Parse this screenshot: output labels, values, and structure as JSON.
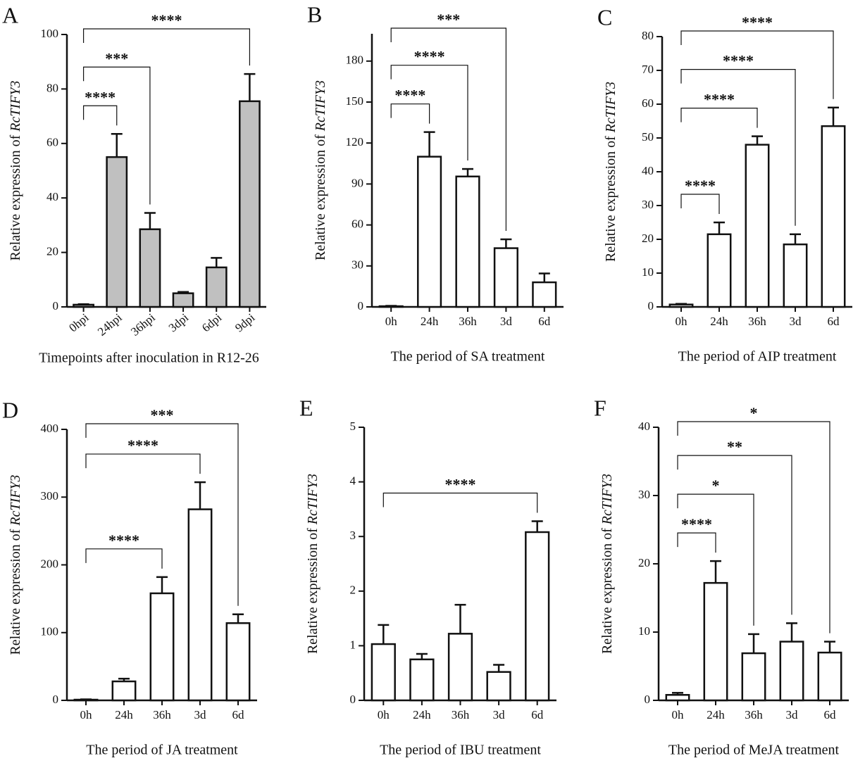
{
  "chart_data": [
    {
      "type": "bar",
      "panel": "A",
      "xlabel": "Timepoints after inoculation in R12-26",
      "ylabel": {
        "text": "Relative expression of",
        "gene": "RcTIFY3"
      },
      "categories": [
        "0hpi",
        "24hpi",
        "36hpi",
        "3dpi",
        "6dpi",
        "9dpi"
      ],
      "values": [
        0.8,
        55,
        28.5,
        5,
        14.5,
        75.5
      ],
      "errors": [
        0.2,
        8.5,
        6,
        0.5,
        3.5,
        10
      ],
      "color": "#c0c0c0",
      "ylim": [
        0,
        100
      ],
      "yticks": [
        0,
        20,
        40,
        60,
        80,
        100
      ],
      "rotate_xticks": true,
      "brackets": [
        {
          "from": 0,
          "to": 1,
          "label": "****"
        },
        {
          "from": 0,
          "to": 2,
          "label": "***"
        },
        {
          "from": 0,
          "to": 5,
          "label": "****"
        }
      ]
    },
    {
      "type": "bar",
      "panel": "B",
      "xlabel": "The period of SA treatment",
      "ylabel": {
        "text": "Relative expression of",
        "gene": "RcTIFY3"
      },
      "categories": [
        "0h",
        "24h",
        "36h",
        "3d",
        "6d"
      ],
      "values": [
        0.5,
        110,
        95.5,
        43,
        18
      ],
      "errors": [
        0.3,
        18,
        5.5,
        6.5,
        6.5
      ],
      "color": "#ffffff",
      "ylim": [
        0,
        200
      ],
      "yticks": [
        0,
        30,
        60,
        90,
        120,
        150,
        180
      ],
      "rotate_xticks": false,
      "brackets": [
        {
          "from": 0,
          "to": 1,
          "label": "****"
        },
        {
          "from": 0,
          "to": 2,
          "label": "****"
        },
        {
          "from": 0,
          "to": 3,
          "label": "***"
        }
      ]
    },
    {
      "type": "bar",
      "panel": "C",
      "xlabel": "The period of AIP treatment",
      "ylabel": {
        "text": "Relative expression of",
        "gene": "RcTIFY3"
      },
      "categories": [
        "0h",
        "24h",
        "36h",
        "3d",
        "6d"
      ],
      "values": [
        0.7,
        21.5,
        48,
        18.5,
        53.5
      ],
      "errors": [
        0.2,
        3.5,
        2.5,
        3,
        5.5
      ],
      "color": "#ffffff",
      "ylim": [
        0,
        80
      ],
      "yticks": [
        0,
        10,
        20,
        30,
        40,
        50,
        60,
        70,
        80
      ],
      "rotate_xticks": false,
      "brackets": [
        {
          "from": 0,
          "to": 1,
          "label": "****"
        },
        {
          "from": 0,
          "to": 2,
          "label": "****"
        },
        {
          "from": 0,
          "to": 3,
          "label": "****"
        },
        {
          "from": 0,
          "to": 4,
          "label": "****"
        }
      ]
    },
    {
      "type": "bar",
      "panel": "D",
      "xlabel": "The period of JA treatment",
      "ylabel": {
        "text": "Relative expression of",
        "gene": "RcTIFY3"
      },
      "categories": [
        "0h",
        "24h",
        "36h",
        "3d",
        "6d"
      ],
      "values": [
        1,
        28,
        158,
        282,
        114
      ],
      "errors": [
        0.5,
        4,
        24,
        40,
        13
      ],
      "color": "#ffffff",
      "ylim": [
        0,
        400
      ],
      "yticks": [
        0,
        100,
        200,
        300,
        400
      ],
      "rotate_xticks": false,
      "brackets": [
        {
          "from": 0,
          "to": 2,
          "label": "****"
        },
        {
          "from": 0,
          "to": 3,
          "label": "****"
        },
        {
          "from": 0,
          "to": 4,
          "label": "***"
        }
      ]
    },
    {
      "type": "bar",
      "panel": "E",
      "xlabel": "The period of IBU treatment",
      "ylabel": {
        "text": "Relative expression of",
        "gene": "RcTIFY3"
      },
      "categories": [
        "0h",
        "24h",
        "36h",
        "3d",
        "6d"
      ],
      "values": [
        1.03,
        0.75,
        1.22,
        0.52,
        3.08
      ],
      "errors": [
        0.35,
        0.1,
        0.53,
        0.13,
        0.2
      ],
      "color": "#ffffff",
      "ylim": [
        0,
        5
      ],
      "yticks": [
        0,
        1,
        2,
        3,
        4,
        5
      ],
      "rotate_xticks": false,
      "brackets": [
        {
          "from": 0,
          "to": 4,
          "label": "****"
        }
      ]
    },
    {
      "type": "bar",
      "panel": "F",
      "xlabel": "The period of MeJA treatment",
      "ylabel": {
        "text": "Relative expression of",
        "gene": "RcTIFY3"
      },
      "categories": [
        "0h",
        "24h",
        "36h",
        "3d",
        "6d"
      ],
      "values": [
        0.8,
        17.2,
        6.9,
        8.6,
        7.0
      ],
      "errors": [
        0.3,
        3.2,
        2.8,
        2.7,
        1.6
      ],
      "color": "#ffffff",
      "ylim": [
        0,
        40
      ],
      "yticks": [
        0,
        10,
        20,
        30,
        40
      ],
      "rotate_xticks": false,
      "brackets": [
        {
          "from": 0,
          "to": 1,
          "label": "****"
        },
        {
          "from": 0,
          "to": 2,
          "label": "*"
        },
        {
          "from": 0,
          "to": 3,
          "label": "**"
        },
        {
          "from": 0,
          "to": 4,
          "label": "*"
        }
      ]
    }
  ]
}
